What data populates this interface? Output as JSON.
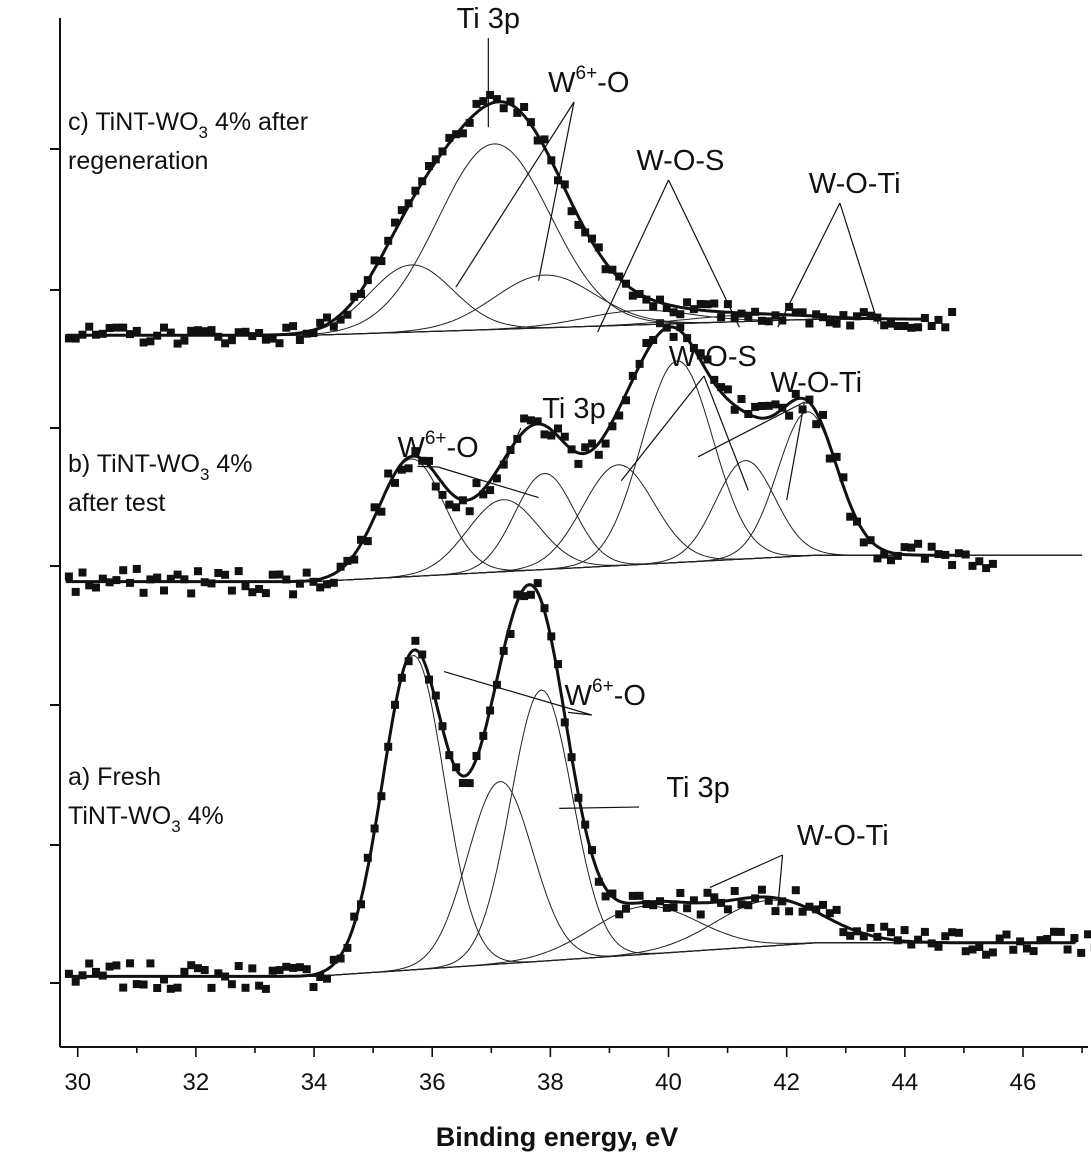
{
  "chart_data": {
    "type": "line",
    "xlabel": "Binding energy, eV",
    "xlim": [
      29.7,
      47.1
    ],
    "x_ticks": [
      30,
      32,
      34,
      36,
      38,
      40,
      42,
      44,
      46
    ],
    "panels": [
      {
        "id": "a",
        "label_lines": [
          {
            "text": "a) Fresh"
          },
          {
            "text": "TiNT-WO",
            "sub": "3",
            "after": " 4%"
          }
        ],
        "baseline": {
          "left": 0.7,
          "right": 1.4
        },
        "components": [
          {
            "name": "W6+-O",
            "center": 35.68,
            "height": 6.55,
            "sigma": 0.52
          },
          {
            "name": "Ti 3p",
            "center": 37.15,
            "height": 3.8,
            "sigma": 0.55
          },
          {
            "name": "W6+-O",
            "center": 37.85,
            "height": 5.65,
            "sigma": 0.52
          },
          {
            "name": "W-O-Ti",
            "center": 39.6,
            "height": 1.0,
            "sigma": 0.9
          },
          {
            "name": "W-O-Ti",
            "center": 41.7,
            "height": 0.95,
            "sigma": 0.9
          }
        ],
        "annotations": [
          {
            "text": "W",
            "sup": "6+",
            "after": "-O",
            "x": 38.93,
            "lead_from": 38.7,
            "targets": [
              [
                36.2,
                7.05
              ],
              [
                38.3,
                6.2
              ]
            ]
          },
          {
            "text": "Ti 3p",
            "x": 40.5,
            "lead_from": 39.5,
            "targets": [
              [
                38.15,
                4.2
              ]
            ]
          },
          {
            "text": "W-O-Ti",
            "x": 42.95,
            "lead_from": 41.93,
            "targets": [
              [
                40.7,
                2.55
              ],
              [
                41.85,
                2.15
              ]
            ]
          }
        ]
      },
      {
        "id": "b",
        "label_lines": [
          {
            "text": "b)  TiNT-WO",
            "sub": "3",
            "after": " 4%"
          },
          {
            "text": "after test"
          }
        ],
        "baseline": {
          "left": 0.8,
          "right": 1.35
        },
        "components": [
          {
            "name": "W6+-O",
            "center": 35.65,
            "height": 2.45,
            "sigma": 0.55
          },
          {
            "name": "Ti 3p",
            "center": 37.2,
            "height": 1.5,
            "sigma": 0.6
          },
          {
            "name": "W6+-O",
            "center": 37.9,
            "height": 2.0,
            "sigma": 0.5
          },
          {
            "name": "W-O-S",
            "center": 39.15,
            "height": 2.1,
            "sigma": 0.6
          },
          {
            "name": "W-O-S",
            "center": 40.15,
            "height": 4.2,
            "sigma": 0.6
          },
          {
            "name": "W-O-Ti",
            "center": 41.3,
            "height": 2.05,
            "sigma": 0.5
          },
          {
            "name": "W-O-Ti",
            "center": 42.35,
            "height": 3.0,
            "sigma": 0.5
          }
        ],
        "annotations": [
          {
            "text": "W",
            "sup": "6+",
            "after": "-O",
            "x": 36.1,
            "lead_from": 36.1,
            "targets": [
              [
                35.75,
                3.2
              ],
              [
                37.8,
                2.55
              ]
            ]
          },
          {
            "text": "Ti 3p",
            "x": 38.4,
            "lead_from": 37.5,
            "targets": [
              [
                37.25,
                3.3
              ]
            ]
          },
          {
            "text": "W-O-S",
            "x": 40.75,
            "lead_from": 40.6,
            "targets": [
              [
                39.2,
                2.9
              ],
              [
                41.35,
                2.7
              ]
            ]
          },
          {
            "text": "W-O-Ti",
            "x": 42.5,
            "lead_from": 42.3,
            "targets": [
              [
                40.5,
                3.4
              ],
              [
                42.0,
                2.5
              ]
            ]
          }
        ]
      },
      {
        "id": "c",
        "label_lines": [
          {
            "text": "c) TiNT-WO",
            "sub": "3",
            "after": " 4% after"
          },
          {
            "text": "regeneration"
          }
        ],
        "baseline": {
          "left": 0.9,
          "right": 1.4
        },
        "components": [
          {
            "name": "W6+-O",
            "center": 35.65,
            "height": 2.1,
            "sigma": 0.7
          },
          {
            "name": "Ti 3p",
            "center": 37.05,
            "height": 5.8,
            "sigma": 0.95
          },
          {
            "name": "W6+-O",
            "center": 37.9,
            "height": 1.65,
            "sigma": 0.85
          },
          {
            "name": "W-O-S",
            "center": 39.5,
            "height": 0.45,
            "sigma": 0.9
          },
          {
            "name": "W-O-Ti",
            "center": 41.3,
            "height": 0.2,
            "sigma": 1.0
          }
        ],
        "annotations": [
          {
            "text": "Ti 3p",
            "x": 36.95,
            "lead_from": 36.95,
            "targets": [
              [
                36.95,
                7.4
              ]
            ]
          },
          {
            "text": "W",
            "sup": "6+",
            "after": "-O",
            "x": 38.65,
            "lead_from": 38.4,
            "targets": [
              [
                36.4,
                2.4
              ],
              [
                37.8,
                2.6
              ]
            ]
          },
          {
            "text": "W-O-S",
            "x": 40.2,
            "lead_from": 40.0,
            "targets": [
              [
                38.8,
                1.0
              ],
              [
                41.2,
                1.15
              ]
            ]
          },
          {
            "text": "W-O-Ti",
            "x": 43.15,
            "lead_from": 42.9,
            "targets": [
              [
                41.85,
                1.15
              ],
              [
                43.55,
                1.25
              ]
            ]
          }
        ]
      }
    ],
    "grid": false,
    "legend": "none",
    "colors": {
      "line": "#111111",
      "markers": "#111111"
    }
  }
}
